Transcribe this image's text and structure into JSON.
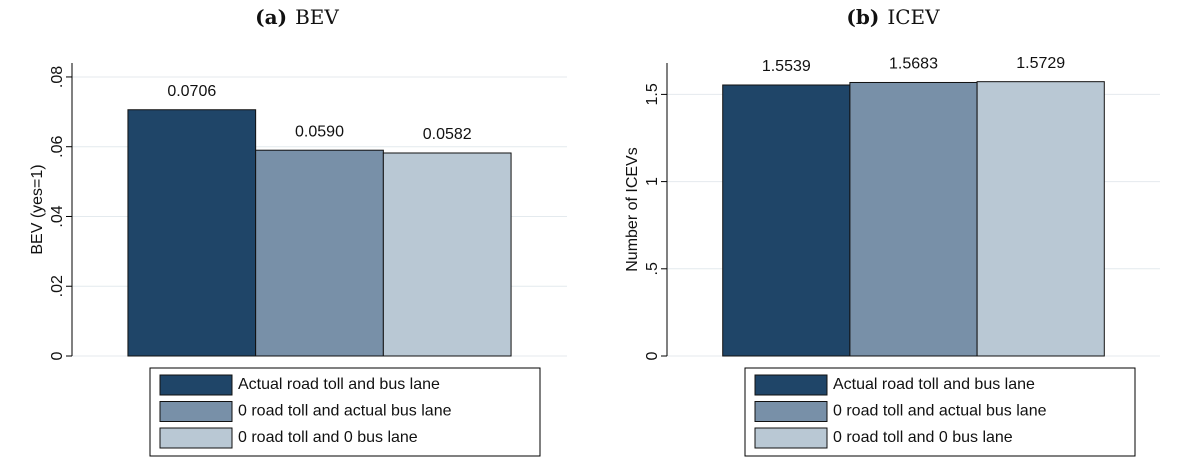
{
  "chart_data": [
    {
      "type": "bar",
      "panel_label": "(a)",
      "title": "BEV",
      "y_label": "BEV (yes=1)",
      "ylim": [
        0,
        0.084
      ],
      "yticks": [
        0,
        {
          "value": 0.02,
          "label": ".02"
        },
        {
          "value": 0.04,
          "label": ".04"
        },
        {
          "value": 0.06,
          "label": ".06"
        },
        {
          "value": 0.08,
          "label": ".08"
        }
      ],
      "grid": true,
      "series": [
        {
          "name": "Actual road toll and bus lane",
          "color": "#1f4568",
          "values": [
            0.0706
          ],
          "value_labels": [
            "0.0706"
          ]
        },
        {
          "name": "0 road toll and actual bus lane",
          "color": "#7890a8",
          "values": [
            0.059
          ],
          "value_labels": [
            "0.0590"
          ]
        },
        {
          "name": "0 road toll and 0 bus lane",
          "color": "#b9c8d4",
          "values": [
            0.0582
          ],
          "value_labels": [
            "0.0582"
          ]
        }
      ]
    },
    {
      "type": "bar",
      "panel_label": "(b)",
      "title": "ICEV",
      "y_label": "Number of ICEVs",
      "ylim": [
        0,
        1.68
      ],
      "yticks": [
        0,
        {
          "value": 0.5,
          "label": ".5"
        },
        1,
        1.5
      ],
      "grid": true,
      "series": [
        {
          "name": "Actual road toll and bus lane",
          "color": "#1f4568",
          "values": [
            1.5539
          ],
          "value_labels": [
            "1.5539"
          ]
        },
        {
          "name": "0 road toll and actual bus lane",
          "color": "#7890a8",
          "values": [
            1.5683
          ],
          "value_labels": [
            "1.5683"
          ]
        },
        {
          "name": "0 road toll and 0 bus lane",
          "color": "#b9c8d4",
          "values": [
            1.5729
          ],
          "value_labels": [
            "1.5729"
          ]
        }
      ]
    }
  ]
}
